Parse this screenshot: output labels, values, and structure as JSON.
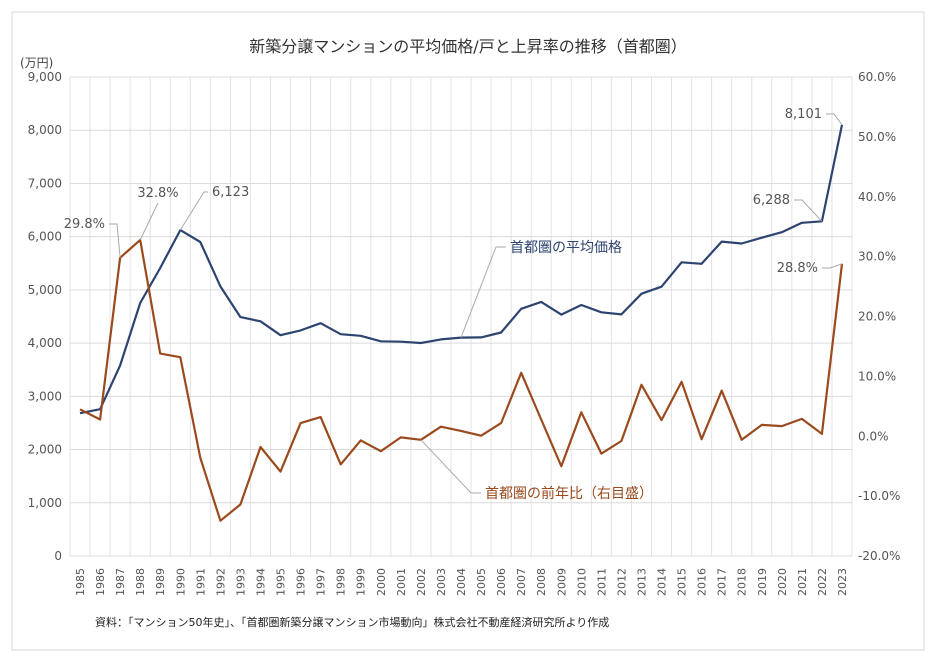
{
  "chart_data": {
    "type": "line",
    "title": "新築分譲マンションの平均価格/戸と上昇率の推移（首都圏）",
    "ylabel_left": "(万円)",
    "source": "資料：「マンション50年史」、「首都圏新築分譲マンション市場動向」株式会社不動産経済研究所より作成",
    "x": [
      1985,
      1986,
      1987,
      1988,
      1989,
      1990,
      1991,
      1992,
      1993,
      1994,
      1995,
      1996,
      1997,
      1998,
      1999,
      2000,
      2001,
      2002,
      2003,
      2004,
      2005,
      2006,
      2007,
      2008,
      2009,
      2010,
      2011,
      2012,
      2013,
      2014,
      2015,
      2016,
      2017,
      2018,
      2019,
      2020,
      2021,
      2022,
      2023
    ],
    "y_left": {
      "min": 0,
      "max": 9000,
      "step": 1000,
      "tick_labels": [
        "0",
        "1,000",
        "2,000",
        "3,000",
        "4,000",
        "5,000",
        "6,000",
        "7,000",
        "8,000",
        "9,000"
      ]
    },
    "y_right": {
      "min": -20,
      "max": 60,
      "step": 10,
      "tick_labels": [
        "-20.0%",
        "-10.0%",
        "0.0%",
        "10.0%",
        "20.0%",
        "30.0%",
        "40.0%",
        "50.0%",
        "60.0%"
      ]
    },
    "grid": true,
    "series": [
      {
        "name": "首都圏の平均価格",
        "axis": "left",
        "color": "#2e4470",
        "values": [
          2683,
          2758,
          3579,
          4753,
          5411,
          6123,
          5900,
          5066,
          4488,
          4409,
          4148,
          4238,
          4374,
          4168,
          4138,
          4034,
          4026,
          4003,
          4069,
          4104,
          4108,
          4200,
          4644,
          4775,
          4535,
          4716,
          4578,
          4540,
          4929,
          5060,
          5518,
          5490,
          5908,
          5871,
          5980,
          6083,
          6260,
          6288,
          8101
        ],
        "annotations": [
          {
            "year": 1990,
            "text": "6,123"
          },
          {
            "year": 2022,
            "text": "6,288"
          },
          {
            "year": 2023,
            "text": "8,101"
          }
        ]
      },
      {
        "name": "首都圏の前年比（右目盛）",
        "axis": "right",
        "color": "#9a4a1c",
        "values": [
          4.5,
          2.8,
          29.8,
          32.8,
          13.8,
          13.2,
          -3.6,
          -14.1,
          -11.4,
          -1.8,
          -5.9,
          2.2,
          3.2,
          -4.7,
          -0.7,
          -2.5,
          -0.2,
          -0.6,
          1.6,
          0.9,
          0.1,
          2.2,
          10.6,
          2.8,
          -5.0,
          4.0,
          -2.9,
          -0.8,
          8.6,
          2.7,
          9.1,
          -0.5,
          7.6,
          -0.6,
          1.9,
          1.7,
          2.9,
          0.4,
          28.8
        ],
        "annotations": [
          {
            "year": 1987,
            "text": "29.8%"
          },
          {
            "year": 1988,
            "text": "32.8%"
          },
          {
            "year": 2023,
            "text": "28.8%"
          }
        ]
      }
    ]
  }
}
